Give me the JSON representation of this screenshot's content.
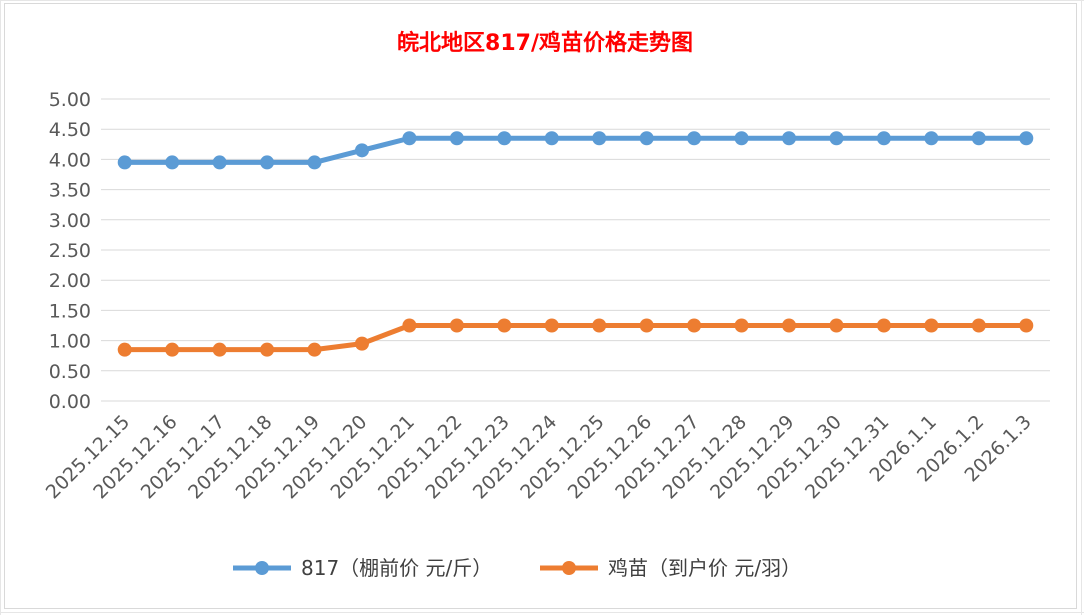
{
  "chart_data": {
    "type": "line",
    "title": "皖北地区817/鸡苗价格走势图",
    "title_color": "#ff0000",
    "xlabel": "",
    "ylabel": "",
    "categories": [
      "2025.12.15",
      "2025.12.16",
      "2025.12.17",
      "2025.12.18",
      "2025.12.19",
      "2025.12.20",
      "2025.12.21",
      "2025.12.22",
      "2025.12.23",
      "2025.12.24",
      "2025.12.25",
      "2025.12.26",
      "2025.12.27",
      "2025.12.28",
      "2025.12.29",
      "2025.12.30",
      "2025.12.31",
      "2026.1.1",
      "2026.1.2",
      "2026.1.3"
    ],
    "ylim": [
      0,
      5
    ],
    "yticks": [
      "0.00",
      "0.50",
      "1.00",
      "1.50",
      "2.00",
      "2.50",
      "3.00",
      "3.50",
      "4.00",
      "4.50",
      "5.00"
    ],
    "grid": true,
    "legend_position": "bottom",
    "series": [
      {
        "name": "817（棚前价 元/斤）",
        "color": "#5b9bd5",
        "values": [
          3.95,
          3.95,
          3.95,
          3.95,
          3.95,
          4.15,
          4.35,
          4.35,
          4.35,
          4.35,
          4.35,
          4.35,
          4.35,
          4.35,
          4.35,
          4.35,
          4.35,
          4.35,
          4.35,
          4.35
        ]
      },
      {
        "name": "鸡苗（到户价 元/羽）",
        "color": "#ed7d31",
        "values": [
          0.85,
          0.85,
          0.85,
          0.85,
          0.85,
          0.95,
          1.25,
          1.25,
          1.25,
          1.25,
          1.25,
          1.25,
          1.25,
          1.25,
          1.25,
          1.25,
          1.25,
          1.25,
          1.25,
          1.25
        ]
      }
    ]
  }
}
